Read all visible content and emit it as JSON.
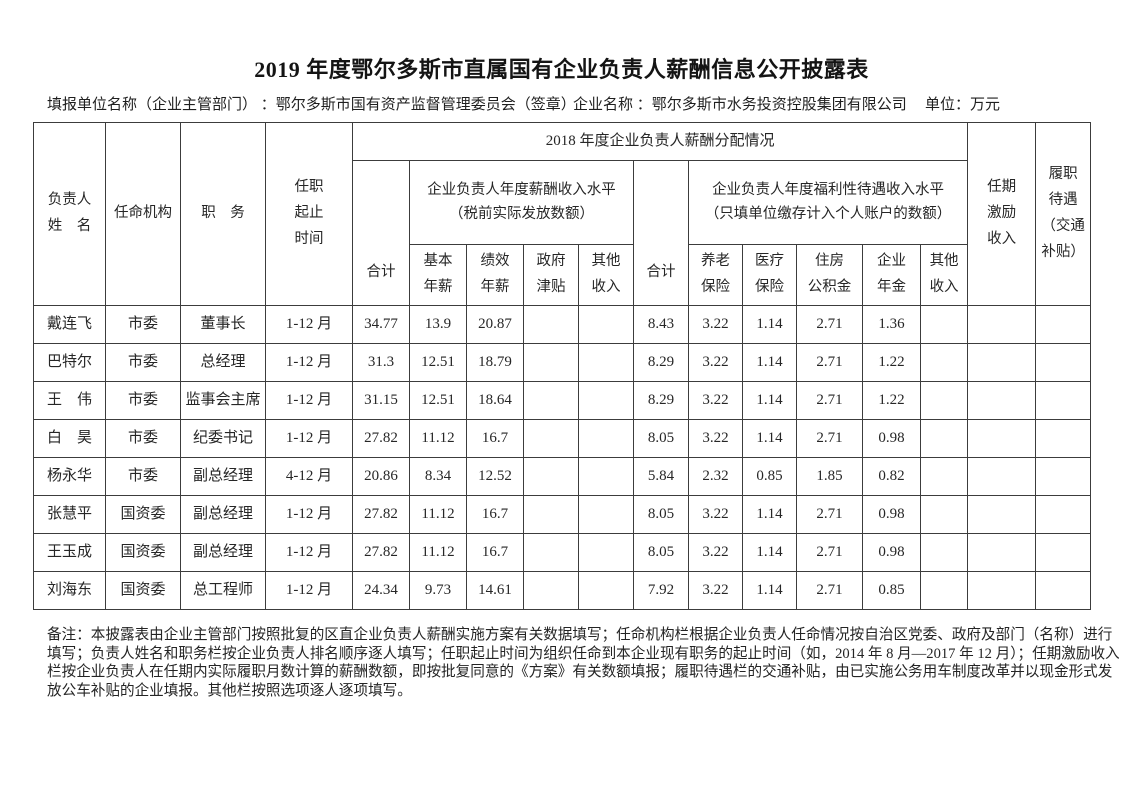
{
  "title": "2019 年度鄂尔多斯市直属国有企业负责人薪酬信息公开披露表",
  "info": {
    "reporting_unit": "填报单位名称（企业主管部门） ：鄂尔多斯市国有资产监督管理委员会（签章）",
    "company": "企业名称 ：鄂尔多斯市水务投资控股集团有限公司",
    "unit": "单位：万元"
  },
  "header": {
    "person": "负责人\n姓　名",
    "agency": "任命机构",
    "position": "职　务",
    "term": "任职\n起止\n时间",
    "top": "2018 年度企业负责人薪酬分配情况",
    "total1": "合计",
    "group1": "企业负责人年度薪酬收入水平\n（税前实际发放数额）",
    "sub1": [
      "基本\n年薪",
      "绩效\n年薪",
      "政府\n津贴",
      "其他\n收入"
    ],
    "total2": "合计",
    "group2": "企业负责人年度福利性待遇收入水平\n（只填单位缴存计入个人账户的数额）",
    "sub2": [
      "养老\n保险",
      "医疗\n保险",
      "住房\n公积金",
      "企业\n年金",
      "其他\n收入"
    ],
    "incentive": "任期\n激励\n收入",
    "allowance": "履职\n待遇\n（交通\n补贴）"
  },
  "rows": [
    [
      "戴连飞",
      "市委",
      "董事长",
      "1-12 月",
      "34.77",
      "13.9",
      "20.87",
      "",
      "",
      "8.43",
      "3.22",
      "1.14",
      "2.71",
      "1.36",
      "",
      "",
      ""
    ],
    [
      "巴特尔",
      "市委",
      "总经理",
      "1-12 月",
      "31.3",
      "12.51",
      "18.79",
      "",
      "",
      "8.29",
      "3.22",
      "1.14",
      "2.71",
      "1.22",
      "",
      "",
      ""
    ],
    [
      "王　伟",
      "市委",
      "监事会主席",
      "1-12 月",
      "31.15",
      "12.51",
      "18.64",
      "",
      "",
      "8.29",
      "3.22",
      "1.14",
      "2.71",
      "1.22",
      "",
      "",
      ""
    ],
    [
      "白　昊",
      "市委",
      "纪委书记",
      "1-12 月",
      "27.82",
      "11.12",
      "16.7",
      "",
      "",
      "8.05",
      "3.22",
      "1.14",
      "2.71",
      "0.98",
      "",
      "",
      ""
    ],
    [
      "杨永华",
      "市委",
      "副总经理",
      "4-12 月",
      "20.86",
      "8.34",
      "12.52",
      "",
      "",
      "5.84",
      "2.32",
      "0.85",
      "1.85",
      "0.82",
      "",
      "",
      ""
    ],
    [
      "张慧平",
      "国资委",
      "副总经理",
      "1-12 月",
      "27.82",
      "11.12",
      "16.7",
      "",
      "",
      "8.05",
      "3.22",
      "1.14",
      "2.71",
      "0.98",
      "",
      "",
      ""
    ],
    [
      "王玉成",
      "国资委",
      "副总经理",
      "1-12 月",
      "27.82",
      "11.12",
      "16.7",
      "",
      "",
      "8.05",
      "3.22",
      "1.14",
      "2.71",
      "0.98",
      "",
      "",
      ""
    ],
    [
      "刘海东",
      "国资委",
      "总工程师",
      "1-12 月",
      "24.34",
      "9.73",
      "14.61",
      "",
      "",
      "7.92",
      "3.22",
      "1.14",
      "2.71",
      "0.85",
      "",
      "",
      ""
    ]
  ],
  "notes": [
    "备注：本披露表由企业主管部门按照批复的区直企业负责人薪酬实施方案有关数据填写；任命机构栏根据企业负责人任命情况按自治区党委、政府及部门（名称）进行",
    "填写；负责人姓名和职务栏按企业负责人排名顺序逐人填写；任职起止时间为组织任命到本企业现有职务的起止时间（如，2014 年 8 月—2017 年 12 月）；任期激励收入",
    "栏按企业负责人在任期内实际履职月数计算的薪酬数额，即按批复同意的《方案》有关数额填报；履职待遇栏的交通补贴，由已实施公务用车制度改革并以现金形式发",
    "放公车补贴的企业填报。其他栏按照选项逐人逐项填写。"
  ]
}
